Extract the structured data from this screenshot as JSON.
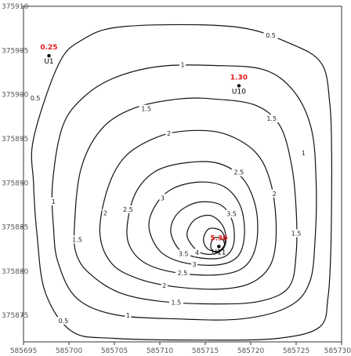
{
  "chart_data": {
    "type": "contour",
    "title": "",
    "xlabel": "",
    "ylabel": "",
    "xlim": [
      585695,
      585730
    ],
    "ylim": [
      375872,
      375910
    ],
    "x_ticks": [
      "585695",
      "585700",
      "585705",
      "585710",
      "585715",
      "585720",
      "585725",
      "585730"
    ],
    "y_ticks": [
      "375910",
      "375905",
      "375900",
      "375895",
      "375890",
      "375885",
      "375880",
      "375875"
    ],
    "points": [
      {
        "name": "U1",
        "value": "0.25",
        "x": 585697.8,
        "y": 375904.4
      },
      {
        "name": "U10",
        "value": "1.30",
        "x": 585718.7,
        "y": 375901.0
      },
      {
        "name": "U11",
        "value": "5.30",
        "x": 585716.5,
        "y": 375882.8
      }
    ],
    "contours": [
      {
        "level": 0.5,
        "label": "0.5",
        "ring": [
          [
            585696.1,
            375895
          ],
          [
            585698.8,
            375903.3
          ],
          [
            585701.3,
            375906.1
          ],
          [
            585706,
            375907.7
          ],
          [
            585718,
            375907.7
          ],
          [
            585724.3,
            375905.8
          ],
          [
            585727.8,
            375903.5
          ],
          [
            585728.7,
            375899
          ],
          [
            585728.9,
            375894
          ],
          [
            585728.9,
            375888
          ],
          [
            585728.8,
            375882
          ],
          [
            585728.5,
            375877
          ],
          [
            585727.6,
            375873.7
          ],
          [
            585723,
            375872.4
          ],
          [
            585715,
            375872.2
          ],
          [
            585705,
            375872.4
          ],
          [
            585700.3,
            375873.2
          ],
          [
            585697.4,
            375877.6
          ],
          [
            585696.5,
            375884
          ],
          [
            585696.1,
            375890
          ]
        ],
        "labels": [
          {
            "x": 585722.2,
            "y": 375906.7,
            "text": "0.5"
          },
          {
            "x": 585696.3,
            "y": 375899.6,
            "text": "0.5"
          },
          {
            "x": 585699.4,
            "y": 375874.4,
            "text": "0.5"
          }
        ]
      },
      {
        "level": 1,
        "label": "1",
        "ring": [
          [
            585698.2,
            375890
          ],
          [
            585699.3,
            375896.4
          ],
          [
            585701.6,
            375899.7
          ],
          [
            585705,
            375901.9
          ],
          [
            585710,
            375903.2
          ],
          [
            585716,
            375903.3
          ],
          [
            585721.5,
            375902.8
          ],
          [
            585724.8,
            375900.3
          ],
          [
            585726.7,
            375896
          ],
          [
            585727.2,
            375890
          ],
          [
            585727.1,
            375884
          ],
          [
            585726.5,
            375878.8
          ],
          [
            585724.2,
            375876
          ],
          [
            585719,
            375874.6
          ],
          [
            585712,
            375874.6
          ],
          [
            585705,
            375875.1
          ],
          [
            585700.8,
            375877
          ],
          [
            585698.8,
            375881
          ],
          [
            585698.3,
            375885
          ]
        ],
        "labels": [
          {
            "x": 585712.5,
            "y": 375903.4,
            "text": "1"
          },
          {
            "x": 585698.3,
            "y": 375887.9,
            "text": "1"
          },
          {
            "x": 585706.5,
            "y": 375875,
            "text": "1"
          },
          {
            "x": 585725.8,
            "y": 375893.4,
            "text": "1"
          }
        ]
      },
      {
        "level": 1.5,
        "label": "1.5",
        "ring": [
          [
            585700.6,
            375885
          ],
          [
            585701.3,
            375891.5
          ],
          [
            585703.5,
            375896
          ],
          [
            585707,
            375898.4
          ],
          [
            585712,
            375899.5
          ],
          [
            585716,
            375899.5
          ],
          [
            585720.5,
            375898.8
          ],
          [
            585723.2,
            375896.5
          ],
          [
            585724.5,
            375892
          ],
          [
            585725,
            375887
          ],
          [
            585725,
            375882
          ],
          [
            585724.2,
            375878.2
          ],
          [
            585721,
            375876.6
          ],
          [
            585716,
            375876.3
          ],
          [
            585710,
            375876.6
          ],
          [
            585705.5,
            375877.6
          ],
          [
            585702.2,
            375879.8
          ],
          [
            585700.8,
            375882
          ]
        ],
        "labels": [
          {
            "x": 585708.5,
            "y": 375898.4,
            "text": "1.5"
          },
          {
            "x": 585722.3,
            "y": 375897.3,
            "text": "1.5"
          },
          {
            "x": 585700.9,
            "y": 375883.6,
            "text": "1.5"
          },
          {
            "x": 585725,
            "y": 375884.3,
            "text": "1.5"
          },
          {
            "x": 585711.8,
            "y": 375876.5,
            "text": "1.5"
          }
        ]
      },
      {
        "level": 2,
        "label": "2",
        "ring": [
          [
            585703.4,
            375884.5
          ],
          [
            585704.3,
            375889.5
          ],
          [
            585706.2,
            375893
          ],
          [
            585709.5,
            375895.1
          ],
          [
            585713,
            375895.9
          ],
          [
            585717,
            375895.6
          ],
          [
            585720.5,
            375893.5
          ],
          [
            585722.2,
            375890
          ],
          [
            585722.8,
            375885
          ],
          [
            585722.3,
            375881
          ],
          [
            585720.3,
            375878.8
          ],
          [
            585717,
            375878
          ],
          [
            585712,
            375878.2
          ],
          [
            585707.5,
            375879.2
          ],
          [
            585704.6,
            375881
          ]
        ],
        "labels": [
          {
            "x": 585711,
            "y": 375895.6,
            "text": "2"
          },
          {
            "x": 585722.6,
            "y": 375888.8,
            "text": "2"
          },
          {
            "x": 585704,
            "y": 375886.6,
            "text": "2"
          },
          {
            "x": 585710.5,
            "y": 375878.4,
            "text": "2"
          }
        ]
      },
      {
        "level": 2.5,
        "label": "2.5",
        "ring": [
          [
            585706.4,
            375885
          ],
          [
            585707.3,
            375888.8
          ],
          [
            585709.5,
            375891.3
          ],
          [
            585713,
            375892.3
          ],
          [
            585716.5,
            375892.2
          ],
          [
            585719.2,
            375890.4
          ],
          [
            585720.6,
            375887
          ],
          [
            585720.6,
            375883
          ],
          [
            585719.3,
            375880.5
          ],
          [
            585716.5,
            375879.6
          ],
          [
            585712,
            375879.8
          ],
          [
            585708.6,
            375880.8
          ],
          [
            585706.8,
            375882.6
          ]
        ],
        "labels": [
          {
            "x": 585718.7,
            "y": 375891.2,
            "text": "2.5"
          },
          {
            "x": 585706.5,
            "y": 375887,
            "text": "2.5"
          },
          {
            "x": 585712.5,
            "y": 375879.8,
            "text": "2.5"
          }
        ]
      },
      {
        "level": 3,
        "label": "3",
        "ring": [
          [
            585708.8,
            375885
          ],
          [
            585709.6,
            375887.6
          ],
          [
            585711.5,
            375889.4
          ],
          [
            585714.5,
            375890.1
          ],
          [
            585717.2,
            375889.5
          ],
          [
            585718.9,
            375887.3
          ],
          [
            585719.3,
            375884
          ],
          [
            585718.5,
            375881.6
          ],
          [
            585716.2,
            375880.7
          ],
          [
            585712.5,
            375881
          ],
          [
            585710,
            375882.3
          ]
        ],
        "labels": [
          {
            "x": 585710.3,
            "y": 375888.3,
            "text": "3"
          },
          {
            "x": 585713.8,
            "y": 375880.8,
            "text": "3"
          }
        ]
      },
      {
        "level": 3.5,
        "label": "3.5",
        "ring": [
          [
            585711.2,
            375884.5
          ],
          [
            585712,
            375886.6
          ],
          [
            585714.2,
            375887.8
          ],
          [
            585716.7,
            375887.5
          ],
          [
            585718,
            375885.6
          ],
          [
            585718.1,
            375883
          ],
          [
            585717,
            375881.6
          ],
          [
            585714.5,
            375881.5
          ],
          [
            585712.3,
            375882.3
          ]
        ],
        "labels": [
          {
            "x": 585717.9,
            "y": 375886.5,
            "text": "3.5"
          },
          {
            "x": 585712.6,
            "y": 375882,
            "text": "3.5"
          }
        ]
      },
      {
        "level": 4,
        "label": "4",
        "ring": [
          [
            585713,
            375884
          ],
          [
            585713.8,
            375885.8
          ],
          [
            585715.6,
            375886.3
          ],
          [
            585717,
            375885
          ],
          [
            585717.2,
            375883
          ],
          [
            585716.1,
            375882
          ],
          [
            585714.3,
            375882.2
          ]
        ],
        "labels": [
          {
            "x": 585714.1,
            "y": 375882.1,
            "text": "4"
          }
        ]
      },
      {
        "level": 4.5,
        "label": "",
        "ring": [
          [
            585714.8,
            375883.6
          ],
          [
            585715.4,
            375884.8
          ],
          [
            585716.7,
            375884.6
          ],
          [
            585717.2,
            375883.3
          ],
          [
            585716.5,
            375882.3
          ],
          [
            585715.3,
            375882.5
          ]
        ],
        "labels": []
      },
      {
        "level": 5,
        "label": "",
        "ring": [
          [
            585715.6,
            375883
          ],
          [
            585716,
            375883.8
          ],
          [
            585716.9,
            375883.6
          ],
          [
            585717.1,
            375882.8
          ],
          [
            585716.5,
            375882.2
          ],
          [
            585715.8,
            375882.3
          ]
        ],
        "labels": []
      }
    ],
    "grid": false,
    "legend": "none"
  }
}
